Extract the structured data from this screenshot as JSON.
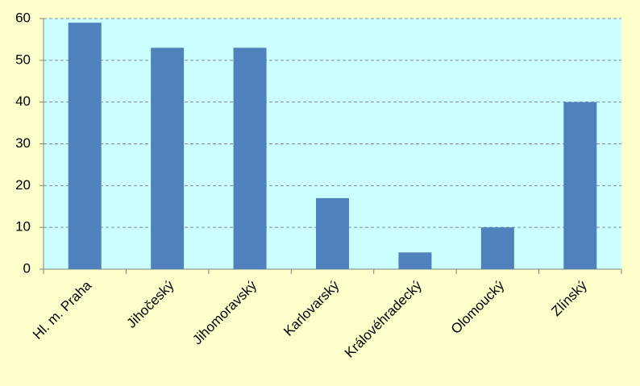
{
  "chart_data": {
    "type": "bar",
    "categories": [
      "Hl. m. Praha",
      "Jihočeský",
      "Jihomoravský",
      "Karlovarský",
      "Královéhradecký",
      "Olomoucký",
      "Zlínský"
    ],
    "values": [
      59,
      53,
      53,
      17,
      4,
      10,
      40
    ],
    "color": "#4f81bd",
    "ylim": [
      0,
      60
    ],
    "yticks": [
      0,
      10,
      20,
      30,
      40,
      50,
      60
    ],
    "grid": true
  }
}
